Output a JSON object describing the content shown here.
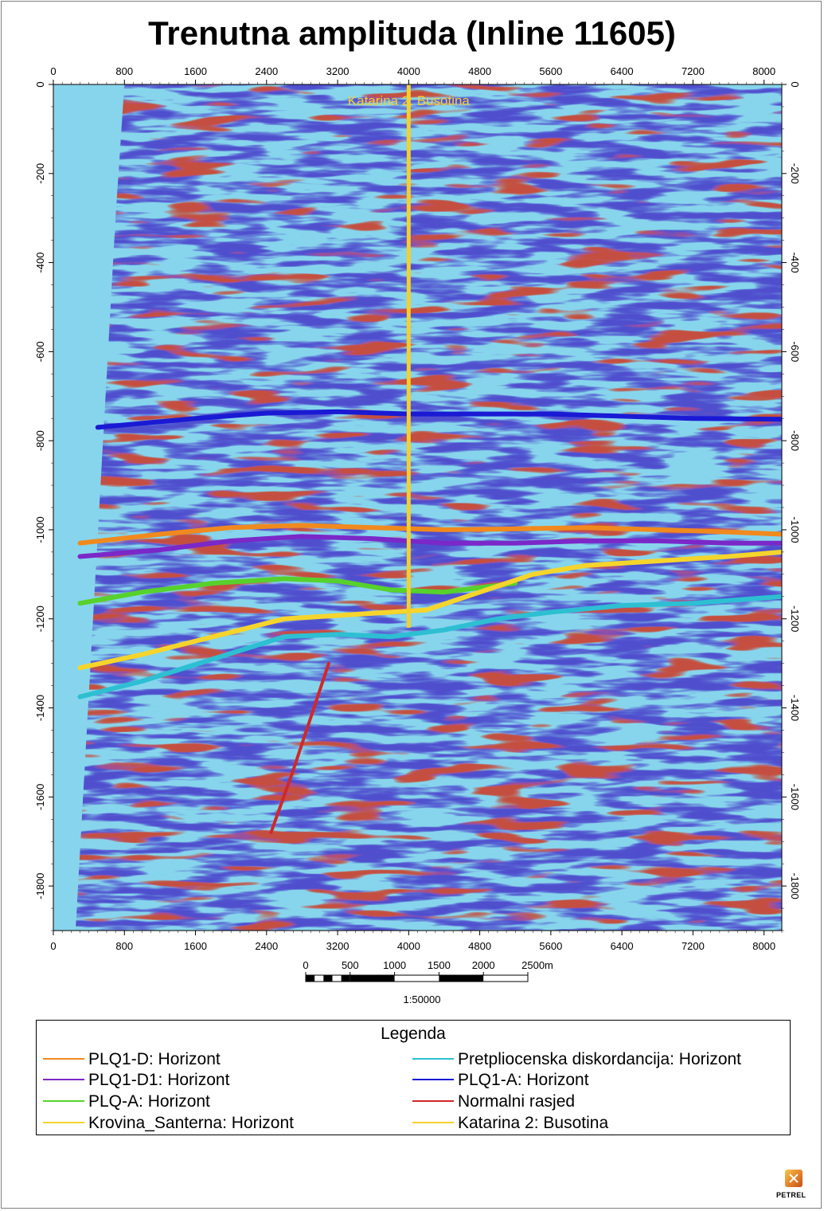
{
  "chart_data": {
    "type": "heatmap",
    "title": "Trenutna amplituda (Inline 11605)",
    "xlabel": "",
    "ylabel": "",
    "xlim": [
      0,
      8200
    ],
    "ylim": [
      0,
      1900
    ],
    "y_inverted": true,
    "x_ticks": [
      0,
      800,
      1600,
      2400,
      3200,
      4000,
      4800,
      5600,
      6400,
      7200,
      8000
    ],
    "y_ticks": [
      0,
      -200,
      -400,
      -600,
      -800,
      -1000,
      -1200,
      -1400,
      -1600,
      -1800
    ],
    "background_color": "#87d5ec",
    "well": {
      "label": "Katarina 2: Busotina",
      "x": 4000,
      "y_top": 0,
      "y_bottom": 1220,
      "color": "#f5cf2c"
    },
    "series": [
      {
        "name": "PLQ1-A: Horizont",
        "color": "#1a1ad4",
        "points": [
          [
            500,
            770
          ],
          [
            1600,
            750
          ],
          [
            2400,
            738
          ],
          [
            3200,
            735
          ],
          [
            4000,
            740
          ],
          [
            4800,
            740
          ],
          [
            5600,
            740
          ],
          [
            6400,
            745
          ],
          [
            7200,
            750
          ],
          [
            8200,
            752
          ]
        ]
      },
      {
        "name": "PLQ1-D: Horizont",
        "color": "#f08a1e",
        "points": [
          [
            300,
            1030
          ],
          [
            1200,
            1010
          ],
          [
            2000,
            995
          ],
          [
            2800,
            990
          ],
          [
            3600,
            995
          ],
          [
            4400,
            1000
          ],
          [
            5200,
            998
          ],
          [
            6000,
            995
          ],
          [
            6800,
            1000
          ],
          [
            7600,
            1005
          ],
          [
            8200,
            1010
          ]
        ]
      },
      {
        "name": "PLQ1-D1: Horizont",
        "color": "#7b28c8",
        "points": [
          [
            300,
            1060
          ],
          [
            1200,
            1045
          ],
          [
            2000,
            1025
          ],
          [
            2800,
            1015
          ],
          [
            3600,
            1020
          ],
          [
            4400,
            1030
          ],
          [
            5200,
            1030
          ],
          [
            6000,
            1025
          ],
          [
            6800,
            1025
          ],
          [
            7600,
            1030
          ],
          [
            8200,
            1030
          ]
        ]
      },
      {
        "name": "PLQ-A: Horizont",
        "color": "#57d12c",
        "points": [
          [
            300,
            1165
          ],
          [
            1000,
            1140
          ],
          [
            1800,
            1120
          ],
          [
            2600,
            1110
          ],
          [
            3200,
            1115
          ],
          [
            3800,
            1135
          ],
          [
            4400,
            1140
          ],
          [
            4800,
            1130
          ],
          [
            5200,
            1120
          ]
        ]
      },
      {
        "name": "Krovina_Santerna: Horizont",
        "color": "#f5d52c",
        "points": [
          [
            300,
            1310
          ],
          [
            1000,
            1280
          ],
          [
            1800,
            1240
          ],
          [
            2600,
            1200
          ],
          [
            3400,
            1190
          ],
          [
            4200,
            1180
          ],
          [
            4800,
            1140
          ],
          [
            5400,
            1100
          ],
          [
            6000,
            1080
          ],
          [
            6800,
            1070
          ],
          [
            7600,
            1060
          ],
          [
            8200,
            1050
          ]
        ]
      },
      {
        "name": "Pretpliocenska  diskordancija: Horizont",
        "color": "#2dbfd2",
        "points": [
          [
            300,
            1375
          ],
          [
            1000,
            1340
          ],
          [
            1800,
            1290
          ],
          [
            2600,
            1240
          ],
          [
            3200,
            1235
          ],
          [
            3800,
            1240
          ],
          [
            4400,
            1225
          ],
          [
            5000,
            1200
          ],
          [
            5600,
            1185
          ],
          [
            6400,
            1170
          ],
          [
            7200,
            1165
          ],
          [
            8200,
            1150
          ]
        ]
      },
      {
        "name": "Normalni rasjed",
        "color": "#d0282a",
        "points": [
          [
            3100,
            1300
          ],
          [
            2900,
            1420
          ],
          [
            2700,
            1540
          ],
          [
            2450,
            1680
          ]
        ]
      }
    ],
    "scale_bar": {
      "ticks": [
        "0",
        "500",
        "1000",
        "1500",
        "2000",
        "2500m"
      ],
      "ratio": "1:50000"
    },
    "legend": {
      "title": "Legenda",
      "items": [
        {
          "label": "PLQ1-D: Horizont",
          "color": "#f08a1e"
        },
        {
          "label": "PLQ1-D1: Horizont",
          "color": "#7b28c8"
        },
        {
          "label": "PLQ-A: Horizont",
          "color": "#57d12c"
        },
        {
          "label": "Krovina_Santerna: Horizont",
          "color": "#f5d52c"
        },
        {
          "label": "Pretpliocenska  diskordancija: Horizont",
          "color": "#2dbfd2"
        },
        {
          "label": "PLQ1-A: Horizont",
          "color": "#1a1ad4"
        },
        {
          "label": "Normalni rasjed",
          "color": "#d0282a"
        },
        {
          "label": "Katarina 2: Busotina",
          "color": "#f5cf2c"
        }
      ]
    }
  },
  "logo": {
    "text": "PETREL"
  }
}
